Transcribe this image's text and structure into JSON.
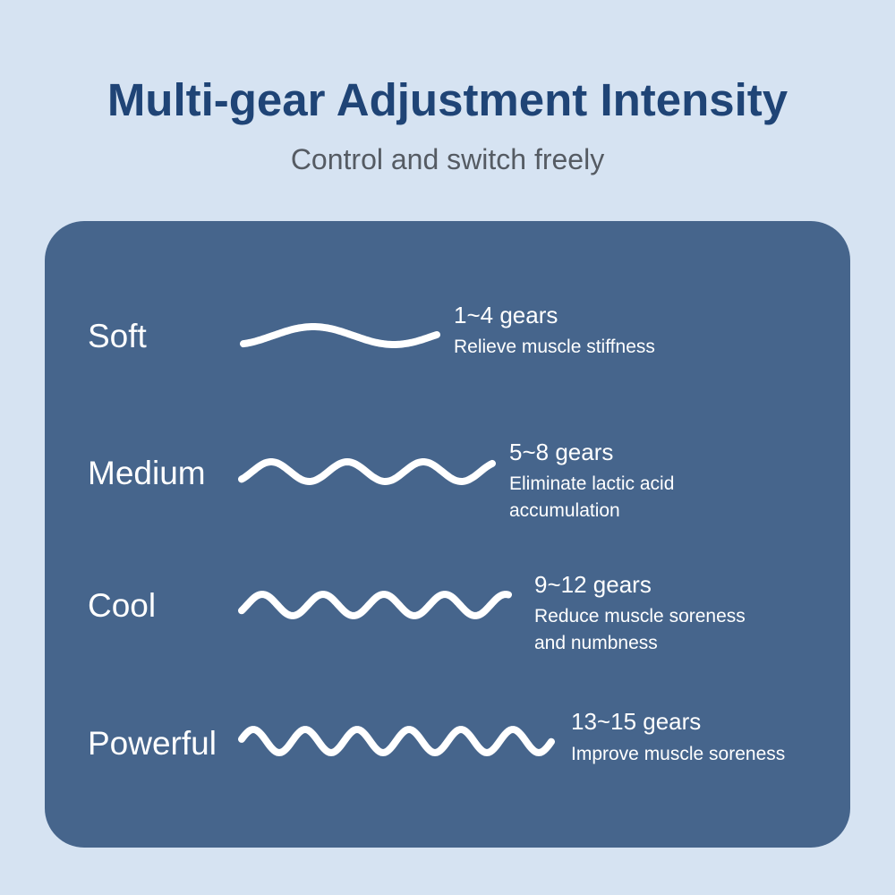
{
  "header": {
    "title": "Multi-gear Adjustment Intensity",
    "subtitle": "Control and switch freely"
  },
  "colors": {
    "background": "#d6e3f2",
    "panel": "#46658c",
    "title": "#1f4476",
    "wave": "#ffffff"
  },
  "modes": [
    {
      "label": "Soft",
      "gears": "1~4 gears",
      "desc": [
        "Relieve muscle stiffness"
      ]
    },
    {
      "label": "Medium",
      "gears": "5~8 gears",
      "desc": [
        "Eliminate lactic acid",
        "accumulation"
      ]
    },
    {
      "label": "Cool",
      "gears": "9~12 gears",
      "desc": [
        "Reduce muscle soreness",
        "and numbness"
      ]
    },
    {
      "label": "Powerful",
      "gears": "13~15 gears",
      "desc": [
        "Improve muscle soreness"
      ]
    }
  ]
}
